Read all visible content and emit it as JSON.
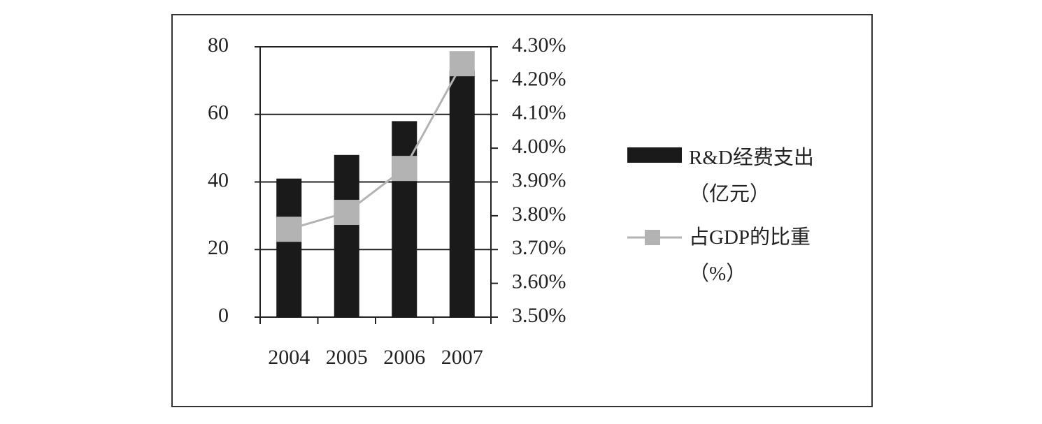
{
  "chart_data": {
    "type": "bar-line",
    "categories": [
      "2004",
      "2005",
      "2006",
      "2007"
    ],
    "series": [
      {
        "name": "R&D经费支出（亿元）",
        "color": "#1a1a1a",
        "type": "bar",
        "values": [
          41,
          48,
          58,
          73
        ]
      },
      {
        "name": "占GDP的比重（%）",
        "color": "#b3b3b3",
        "type": "line",
        "axis": "y2",
        "values": [
          3.76,
          3.81,
          3.94,
          4.25
        ]
      }
    ],
    "ylim": [
      0,
      80
    ],
    "yticks": [
      0,
      20,
      40,
      60,
      80
    ],
    "y2lim": [
      3.5,
      4.3
    ],
    "y2ticks": [
      {
        "value": 3.5,
        "label": "3.50%"
      },
      {
        "value": 3.6,
        "label": "3.60%"
      },
      {
        "value": 3.7,
        "label": "3.70%"
      },
      {
        "value": 3.8,
        "label": "3.80%"
      },
      {
        "value": 3.9,
        "label": "3.90%"
      },
      {
        "value": 4.0,
        "label": "4.00%"
      },
      {
        "value": 4.1,
        "label": "4.10%"
      },
      {
        "value": 4.2,
        "label": "4.20%"
      },
      {
        "value": 4.3,
        "label": "4.30%"
      }
    ],
    "grid": true
  }
}
